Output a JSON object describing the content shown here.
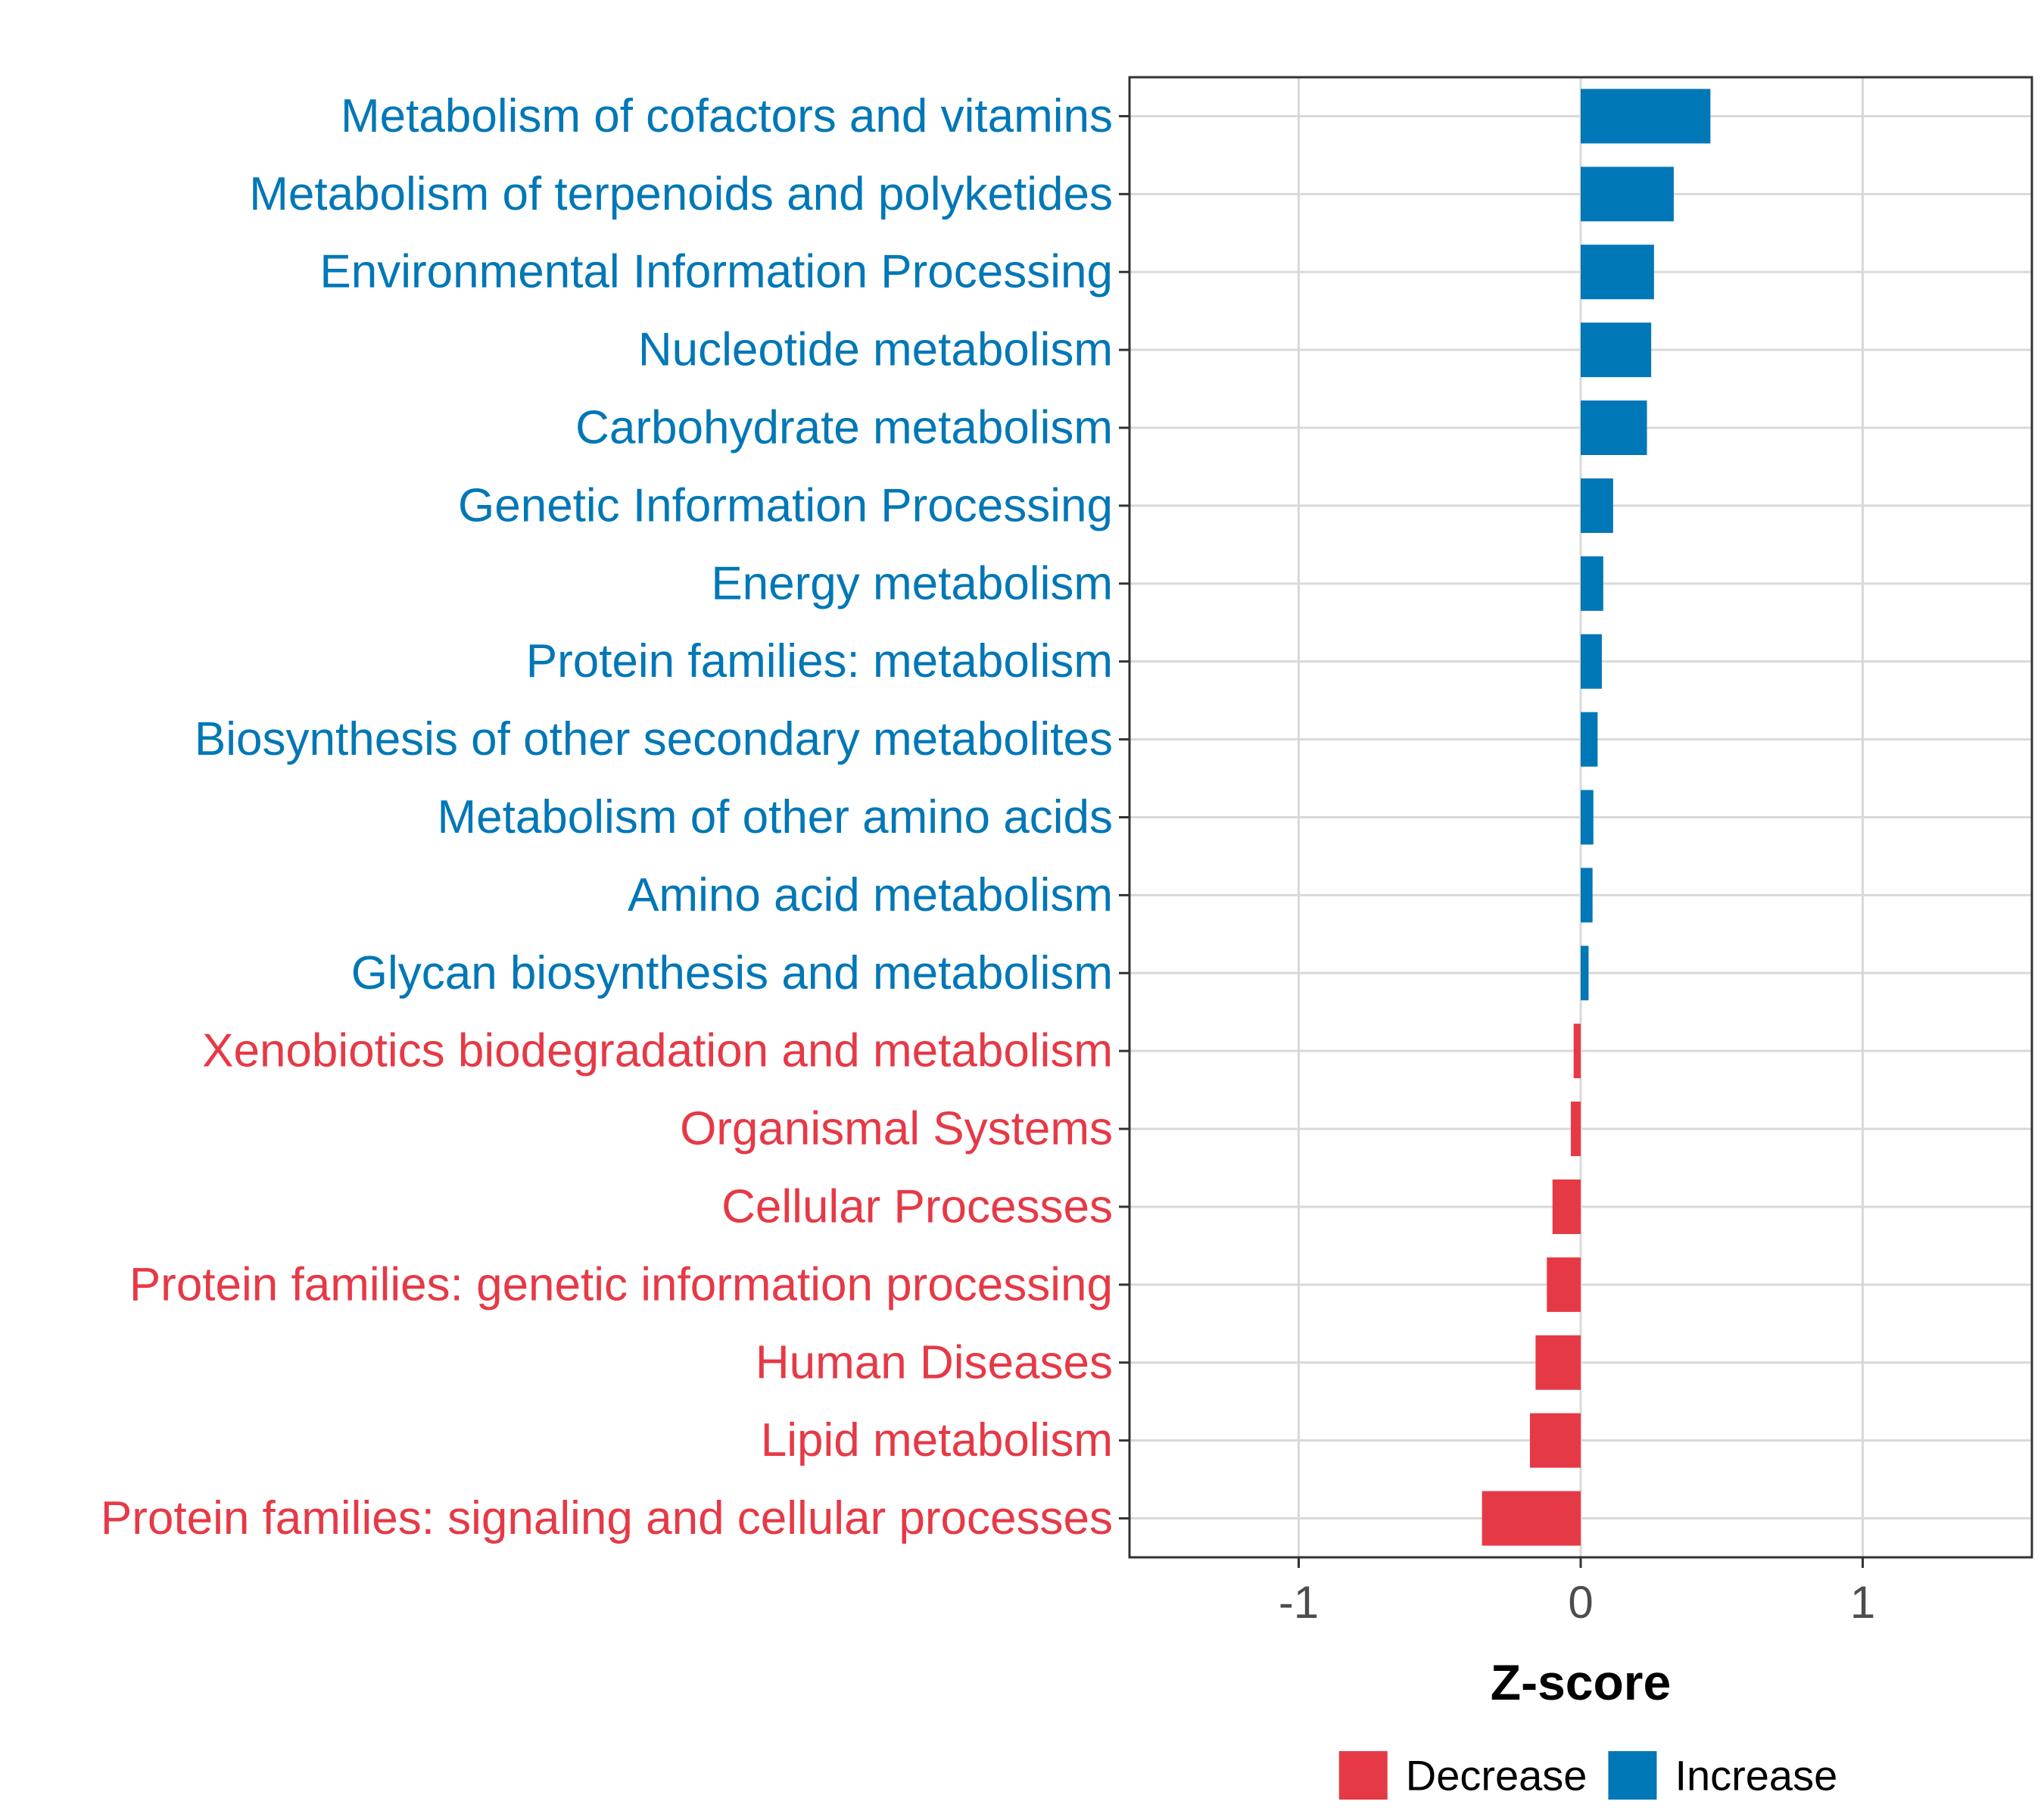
{
  "chart_data": {
    "type": "bar",
    "orientation": "horizontal",
    "title": "",
    "xlabel": "Z-score",
    "ylabel": "",
    "xlim": [
      -1.6,
      1.6
    ],
    "xticks": [
      -1,
      0,
      1
    ],
    "xtick_labels": [
      "-1",
      "0",
      "1"
    ],
    "grid": true,
    "legend_position": "bottom",
    "colors": {
      "Decrease": "#E63946",
      "Increase": "#0077B6"
    },
    "categories": [
      "Metabolism of cofactors and vitamins",
      "Metabolism of terpenoids and polyketides",
      "Environmental Information Processing",
      "Nucleotide metabolism",
      "Carbohydrate metabolism",
      "Genetic Information Processing",
      "Energy metabolism",
      "Protein families: metabolism",
      "Biosynthesis of other secondary metabolites",
      "Metabolism of other amino acids",
      "Amino acid metabolism",
      "Glycan biosynthesis and metabolism",
      "Xenobiotics biodegradation and metabolism",
      "Organismal Systems",
      "Cellular Processes",
      "Protein families: genetic information processing",
      "Human Diseases",
      "Lipid metabolism",
      "Protein families: signaling and cellular processes"
    ],
    "values": [
      0.46,
      0.33,
      0.26,
      0.25,
      0.235,
      0.115,
      0.08,
      0.075,
      0.06,
      0.045,
      0.042,
      0.028,
      -0.025,
      -0.035,
      -0.1,
      -0.12,
      -0.16,
      -0.18,
      -0.35
    ],
    "groups": [
      "Increase",
      "Increase",
      "Increase",
      "Increase",
      "Increase",
      "Increase",
      "Increase",
      "Increase",
      "Increase",
      "Increase",
      "Increase",
      "Increase",
      "Decrease",
      "Decrease",
      "Decrease",
      "Decrease",
      "Decrease",
      "Decrease",
      "Decrease"
    ],
    "legend": [
      {
        "name": "Decrease",
        "color": "#E63946"
      },
      {
        "name": "Increase",
        "color": "#0077B6"
      }
    ]
  }
}
